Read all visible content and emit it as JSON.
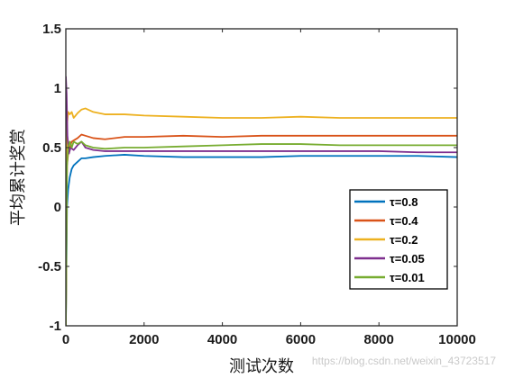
{
  "chart_data": {
    "type": "line",
    "title": "",
    "xlabel": "测试次数",
    "ylabel": "平均累计奖赏",
    "xlim": [
      0,
      10000
    ],
    "ylim": [
      -1,
      1.5
    ],
    "xticks": [
      0,
      2000,
      4000,
      6000,
      8000,
      10000
    ],
    "yticks": [
      -1,
      -0.5,
      0,
      0.5,
      1,
      1.5
    ],
    "xtick_labels": [
      "0",
      "2000",
      "4000",
      "6000",
      "8000",
      "10000"
    ],
    "ytick_labels": [
      "-1",
      "-0.5",
      "0",
      "0.5",
      "1",
      "1.5"
    ],
    "grid": false,
    "legend_position": "lower-right",
    "series": [
      {
        "name": "τ=0.8",
        "color": "#0072BD",
        "x": [
          0,
          30,
          60,
          100,
          150,
          200,
          300,
          400,
          500,
          700,
          1000,
          1500,
          2000,
          3000,
          4000,
          5000,
          6000,
          7000,
          8000,
          9000,
          10000
        ],
        "y": [
          -1,
          0.0,
          0.15,
          0.25,
          0.32,
          0.35,
          0.38,
          0.41,
          0.41,
          0.42,
          0.43,
          0.44,
          0.43,
          0.42,
          0.42,
          0.42,
          0.43,
          0.43,
          0.43,
          0.43,
          0.42
        ]
      },
      {
        "name": "τ=0.4",
        "color": "#D95319",
        "x": [
          0,
          30,
          60,
          100,
          150,
          200,
          300,
          400,
          500,
          700,
          1000,
          1500,
          2000,
          3000,
          4000,
          5000,
          6000,
          7000,
          8000,
          9000,
          10000
        ],
        "y": [
          -1,
          0.35,
          0.45,
          0.5,
          0.55,
          0.56,
          0.58,
          0.61,
          0.6,
          0.58,
          0.57,
          0.59,
          0.59,
          0.6,
          0.59,
          0.6,
          0.6,
          0.6,
          0.6,
          0.6,
          0.6
        ]
      },
      {
        "name": "τ=0.2",
        "color": "#EDB120",
        "x": [
          0,
          30,
          60,
          100,
          150,
          200,
          300,
          400,
          500,
          700,
          1000,
          1500,
          2000,
          3000,
          4000,
          5000,
          6000,
          7000,
          8000,
          9000,
          10000
        ],
        "y": [
          -1,
          0.7,
          0.8,
          0.78,
          0.8,
          0.75,
          0.79,
          0.82,
          0.83,
          0.8,
          0.78,
          0.78,
          0.77,
          0.76,
          0.75,
          0.75,
          0.76,
          0.75,
          0.75,
          0.75,
          0.75
        ]
      },
      {
        "name": "τ=0.05",
        "color": "#7E2F8E",
        "x": [
          0,
          20,
          40,
          80,
          120,
          200,
          300,
          400,
          500,
          700,
          1000,
          1500,
          2000,
          3000,
          4000,
          5000,
          6000,
          7000,
          8000,
          9000,
          10000
        ],
        "y": [
          1.1,
          0.95,
          0.6,
          0.45,
          0.5,
          0.48,
          0.52,
          0.55,
          0.5,
          0.48,
          0.47,
          0.47,
          0.47,
          0.47,
          0.47,
          0.47,
          0.47,
          0.47,
          0.47,
          0.46,
          0.46
        ]
      },
      {
        "name": "τ=0.01",
        "color": "#77AC30",
        "x": [
          0,
          30,
          60,
          100,
          150,
          200,
          300,
          400,
          500,
          700,
          1000,
          1500,
          2000,
          3000,
          4000,
          5000,
          6000,
          7000,
          8000,
          9000,
          10000
        ],
        "y": [
          -1,
          0.35,
          0.5,
          0.55,
          0.5,
          0.55,
          0.53,
          0.55,
          0.52,
          0.5,
          0.49,
          0.5,
          0.5,
          0.51,
          0.52,
          0.53,
          0.53,
          0.52,
          0.52,
          0.52,
          0.52
        ]
      }
    ]
  },
  "watermark": "https://blog.csdn.net/weixin_43723517"
}
